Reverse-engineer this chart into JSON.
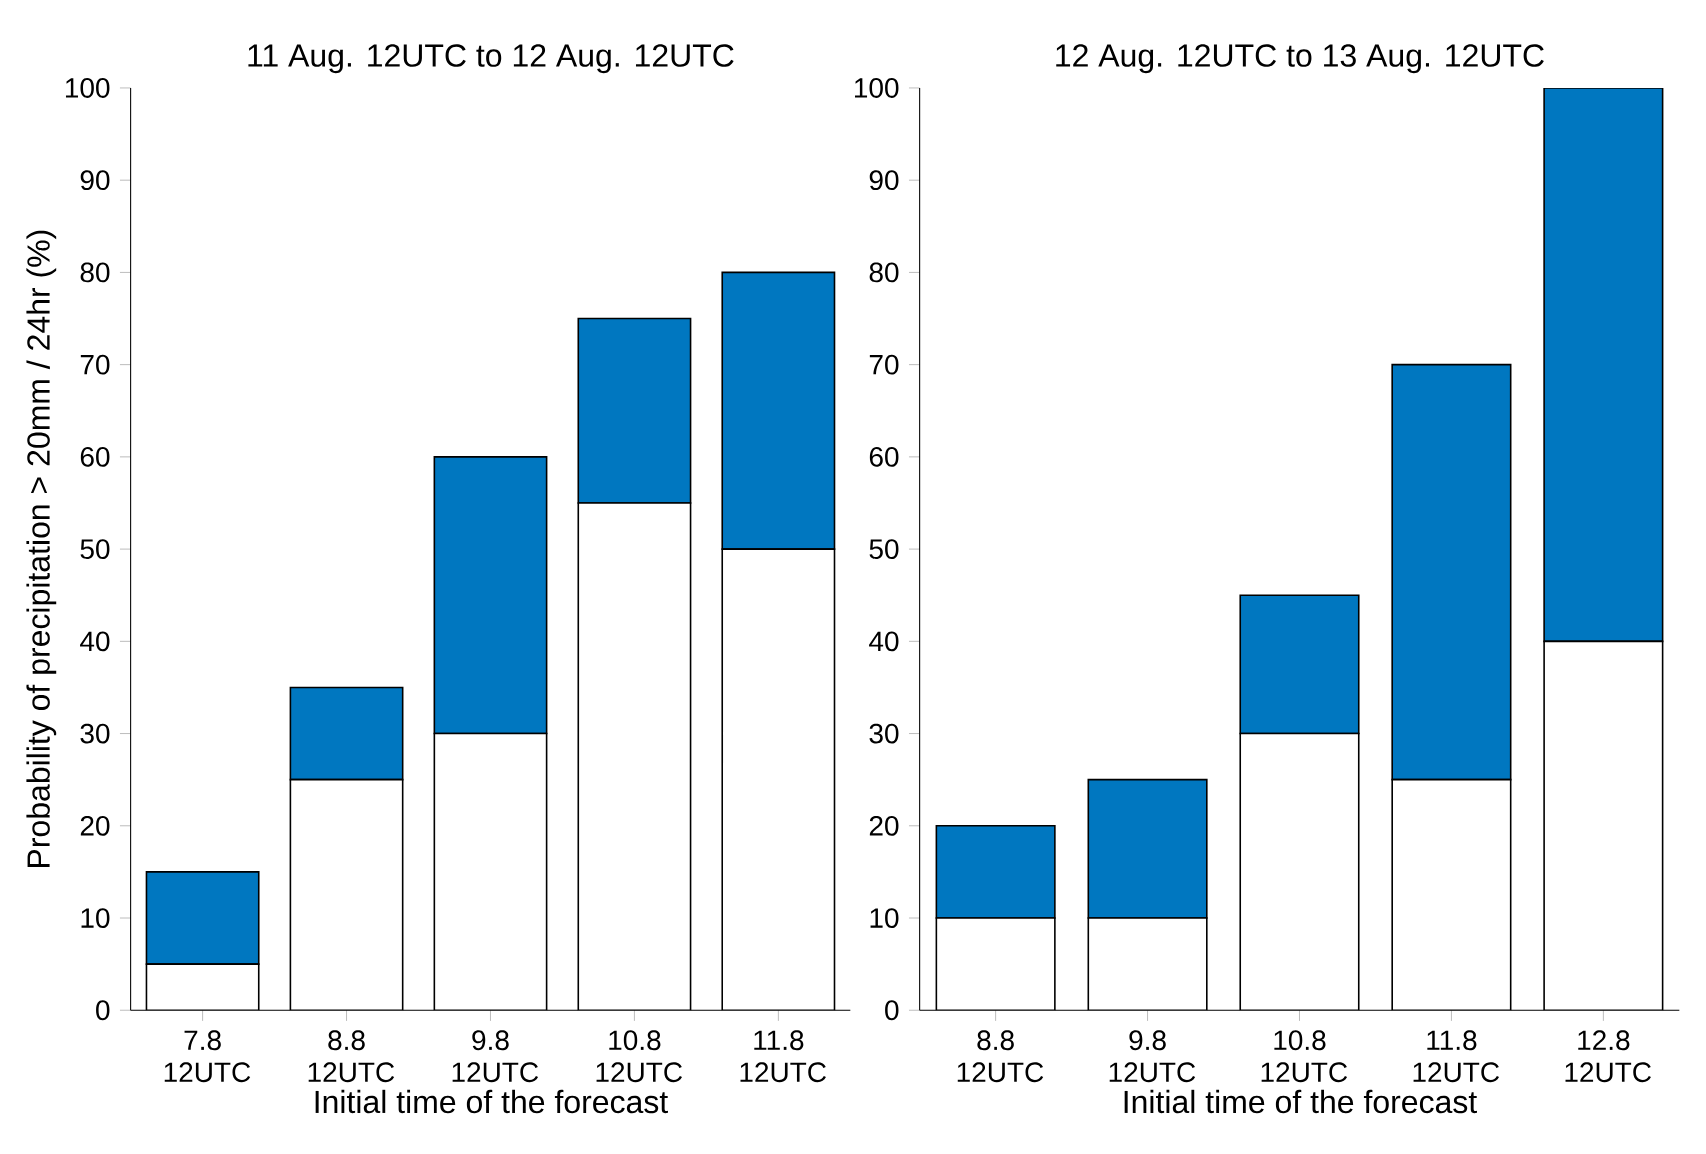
{
  "chart_data": [
    {
      "type": "bar",
      "stacked": true,
      "title": "11 Aug. 12UTC to 12 Aug. 12UTC",
      "xlabel": "Initial time of the forecast",
      "ylabel": "Probability of precipitation > 20mm / 24hr (%)",
      "categories": [
        "7.8 12UTC",
        "8.8 12UTC",
        "9.8 12UTC",
        "10.8 12UTC",
        "11.8 12UTC"
      ],
      "series": [
        {
          "color": "#ffffff",
          "values": [
            5,
            25,
            30,
            55,
            50
          ]
        },
        {
          "color": "#0077c0",
          "values": [
            10,
            10,
            30,
            20,
            30
          ]
        }
      ],
      "ylim": [
        0,
        100
      ],
      "yticks": [
        0,
        10,
        20,
        30,
        40,
        50,
        60,
        70,
        80,
        90,
        100
      ]
    },
    {
      "type": "bar",
      "stacked": true,
      "title": "12 Aug. 12UTC to 13 Aug. 12UTC",
      "xlabel": "Initial time of the forecast",
      "categories": [
        "8.8 12UTC",
        "9.8 12UTC",
        "10.8 12UTC",
        "11.8 12UTC",
        "12.8 12UTC"
      ],
      "series": [
        {
          "color": "#ffffff",
          "values": [
            10,
            10,
            30,
            25,
            40
          ]
        },
        {
          "color": "#0077c0",
          "values": [
            10,
            15,
            15,
            45,
            60
          ]
        }
      ],
      "ylim": [
        0,
        100
      ],
      "yticks": [
        0,
        10,
        20,
        30,
        40,
        50,
        60,
        70,
        80,
        90,
        100
      ]
    }
  ]
}
